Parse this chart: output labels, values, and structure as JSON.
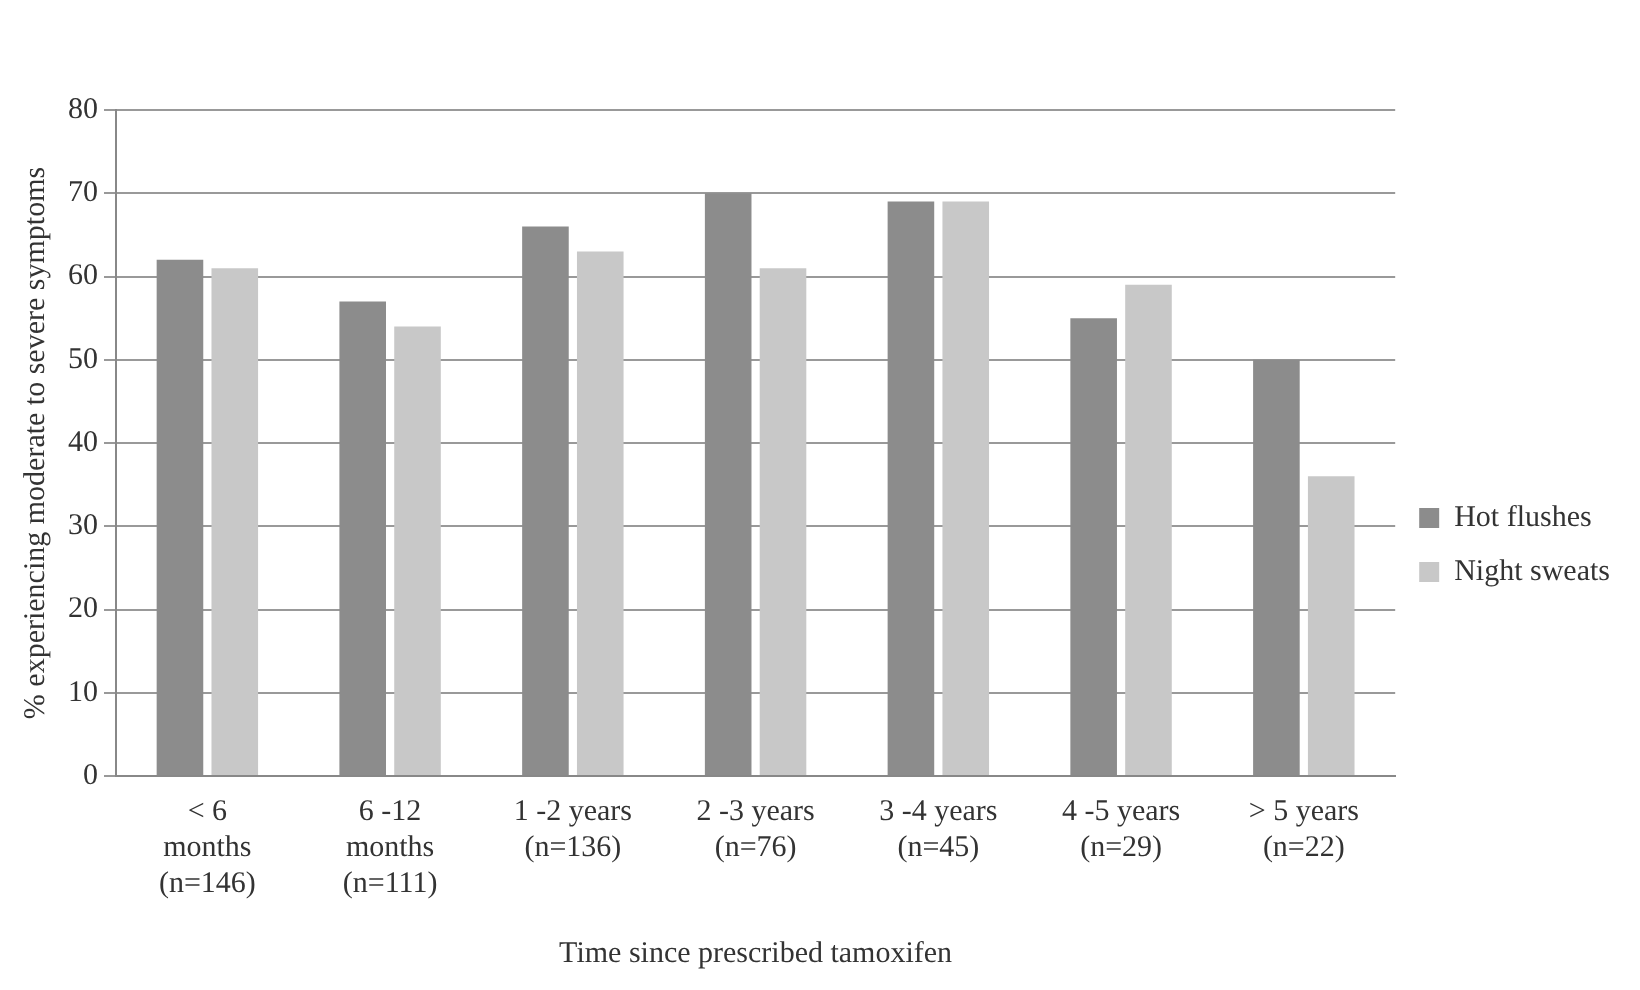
{
  "chart_data": {
    "type": "bar",
    "xlabel": "Time since prescribed tamoxifen",
    "ylabel": "% experiencing moderate to severe symptoms",
    "categories": [
      "< 6\nmonths\n(n=146)",
      "6 -12\nmonths\n(n=111)",
      "1 -2 years\n(n=136)",
      "2 -3 years\n(n=76)",
      "3 -4 years\n(n=45)",
      "4 -5 years\n(n=29)",
      "> 5 years\n(n=22)"
    ],
    "series": [
      {
        "name": "Hot flushes",
        "color": "#8c8c8c",
        "values": [
          62,
          57,
          66,
          70,
          69,
          55,
          50
        ]
      },
      {
        "name": "Night sweats",
        "color": "#c8c8c8",
        "values": [
          61,
          54,
          63,
          61,
          69,
          59,
          36
        ]
      }
    ],
    "ylim": [
      0,
      80
    ],
    "yticks": [
      0,
      10,
      20,
      30,
      40,
      50,
      60,
      70,
      80
    ],
    "grid": "y",
    "legend": "right"
  }
}
